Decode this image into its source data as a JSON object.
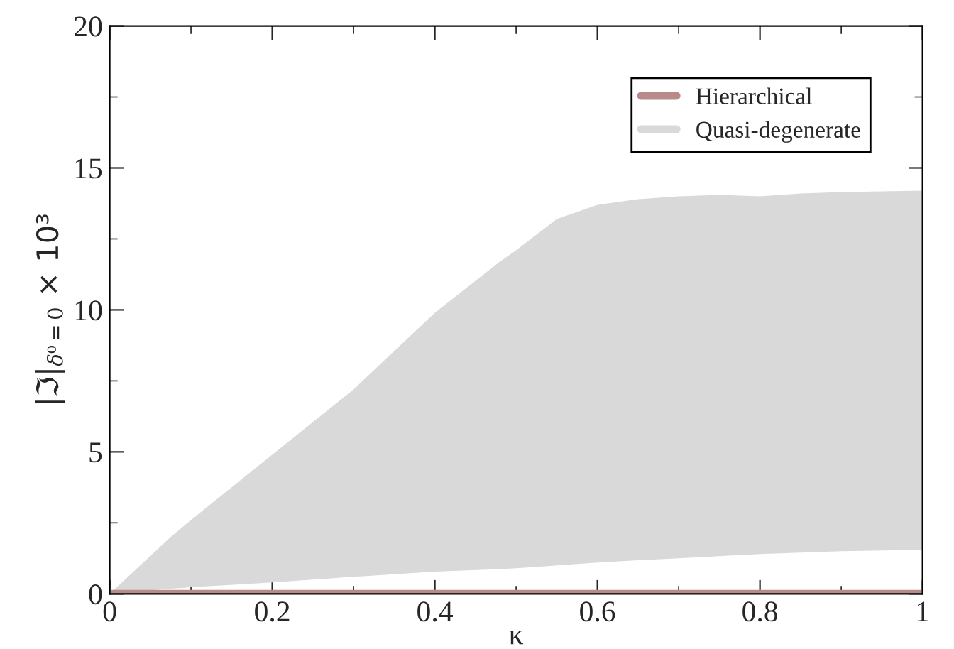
{
  "chart_data": {
    "type": "line",
    "xlabel": "κ",
    "ylabel": "|ℑ|$_{δ⁰=0}$ × 10³",
    "xlim": [
      0,
      1
    ],
    "ylim": [
      0,
      20
    ],
    "xticks": [
      0,
      0.2,
      0.4,
      0.6,
      0.8,
      {
        "value": 1,
        "label": "1"
      }
    ],
    "yticks": [
      0,
      5,
      10,
      15,
      20
    ],
    "grid": false,
    "legend": "top right",
    "series": [
      {
        "name": "Hierarchical",
        "color": "#b88a8a",
        "x": [
          0,
          1
        ],
        "values": [
          0.05,
          0.05
        ]
      },
      {
        "name": "Quasi-degenerate",
        "color": "#d9d9d9",
        "x": [
          0,
          0.075,
          0.1,
          0.2,
          0.3,
          0.4,
          0.48,
          0.5,
          0.55,
          0.6,
          0.65,
          0.7,
          0.75,
          0.8,
          0.85,
          0.9,
          1.0
        ],
        "values": [
          null,
          null,
          null,
          null,
          null,
          null,
          null,
          null,
          null,
          null,
          null,
          null,
          null,
          null,
          null,
          null,
          null
        ],
        "upper": [
          0,
          2.0,
          2.6,
          4.9,
          7.2,
          9.9,
          11.7,
          12.1,
          13.2,
          13.7,
          13.9,
          14.0,
          14.05,
          14.0,
          14.1,
          14.15,
          14.2
        ],
        "lower": [
          0,
          0.18,
          0.23,
          0.4,
          0.6,
          0.78,
          0.87,
          0.9,
          1.0,
          1.1,
          1.18,
          1.25,
          1.33,
          1.4,
          1.45,
          1.5,
          1.55
        ]
      }
    ]
  }
}
